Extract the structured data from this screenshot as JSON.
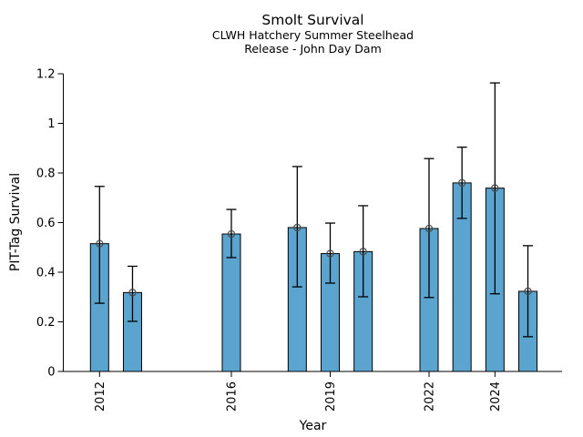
{
  "chart_data": {
    "type": "bar",
    "title": "Smolt Survival",
    "subtitle_line1": "CLWH Hatchery Summer Steelhead",
    "subtitle_line2": "Release - John Day Dam",
    "xlabel": "Year",
    "ylabel": "PIT-Tag Survival",
    "ylim": [
      0,
      1.2
    ],
    "ytick_values": [
      0,
      0.2,
      0.4,
      0.6,
      0.8,
      1.0,
      1.2
    ],
    "ytick_labels": [
      "0",
      "0.2",
      "0.4",
      "0.6",
      "0.8",
      "1",
      "1.2"
    ],
    "xtick_years": [
      2012,
      2016,
      2019,
      2022,
      2024
    ],
    "grid": false,
    "legend_position": "none",
    "marker": "open-circle",
    "colors": {
      "bar_fill": "#5BA4CF",
      "bar_edge": "#000000",
      "error_bar": "#000000",
      "marker_edge": "#4a4a4a",
      "axis": "#000000",
      "text": "#000000",
      "background": "#ffffff"
    },
    "series": [
      {
        "name": "PIT-Tag Survival",
        "x": [
          2012,
          2013,
          2016,
          2018,
          2019,
          2020,
          2022,
          2023,
          2024,
          2025
        ],
        "values": [
          0.515,
          0.318,
          0.554,
          0.58,
          0.475,
          0.483,
          0.576,
          0.76,
          0.739,
          0.323
        ],
        "err_low": [
          0.275,
          0.202,
          0.459,
          0.341,
          0.356,
          0.301,
          0.298,
          0.617,
          0.313,
          0.14
        ],
        "err_high": [
          0.746,
          0.424,
          0.653,
          0.826,
          0.598,
          0.668,
          0.858,
          0.904,
          1.163,
          0.507
        ]
      }
    ]
  }
}
